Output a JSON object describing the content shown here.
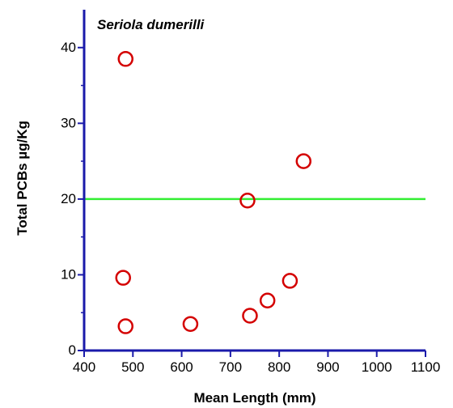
{
  "chart_data": {
    "type": "scatter",
    "title": "Seriola dumerilli",
    "xlabel": "Mean Length (mm)",
    "ylabel": "Total PCBs µg/Kg",
    "xlim": [
      400,
      1100
    ],
    "ylim": [
      0,
      45
    ],
    "xticks": [
      400,
      500,
      600,
      700,
      800,
      900,
      1000,
      1100
    ],
    "yticks": [
      0,
      10,
      20,
      30,
      40
    ],
    "grid": false,
    "legend": "none",
    "series": [
      {
        "points": [
          {
            "x": 485,
            "y": 38.5
          },
          {
            "x": 850,
            "y": 25.0
          },
          {
            "x": 735,
            "y": 19.8
          },
          {
            "x": 480,
            "y": 9.6
          },
          {
            "x": 822,
            "y": 9.2
          },
          {
            "x": 776,
            "y": 6.6
          },
          {
            "x": 740,
            "y": 4.6
          },
          {
            "x": 618,
            "y": 3.5
          },
          {
            "x": 485,
            "y": 3.2
          }
        ],
        "marker": "open-circle",
        "color": "#d40000"
      }
    ],
    "reference_lines": [
      {
        "y": 20,
        "color": "#33ee33"
      }
    ],
    "axis_color": "#1a1aaa"
  }
}
